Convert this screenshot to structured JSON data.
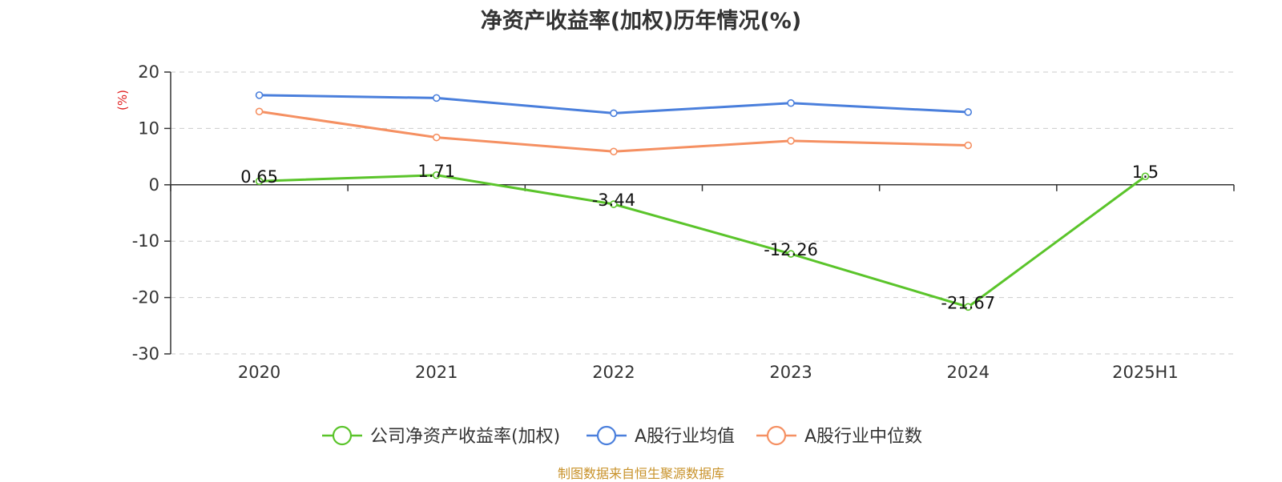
{
  "title": "净资产收益率(加权)历年情况(%)",
  "source": "制图数据来自恒生聚源数据库",
  "chart_data": {
    "type": "line",
    "title": "净资产收益率(加权)历年情况(%)",
    "ylabel": "(%)",
    "ylabel_color": "#e02020",
    "categories": [
      "2020",
      "2021",
      "2022",
      "2023",
      "2024",
      "2025H1"
    ],
    "ylim": [
      -30,
      20
    ],
    "yticks": [
      20,
      10,
      0,
      -10,
      -20,
      -30
    ],
    "grid": true,
    "legend_position": "bottom",
    "series": [
      {
        "name": "公司净资产收益率(加权)",
        "color": "#5ac42a",
        "values": [
          0.65,
          1.71,
          -3.44,
          -12.26,
          -21.67,
          1.5
        ],
        "labels": [
          "0.65",
          "1.71",
          "-3.44",
          "-12.26",
          "-21.67",
          "1.5"
        ]
      },
      {
        "name": "A股行业均值",
        "color": "#4a7fdc",
        "values": [
          15.9,
          15.4,
          12.7,
          14.5,
          12.9,
          null
        ]
      },
      {
        "name": "A股行业中位数",
        "color": "#f59062",
        "values": [
          13.0,
          8.4,
          5.9,
          7.8,
          7.0,
          null
        ]
      }
    ]
  }
}
